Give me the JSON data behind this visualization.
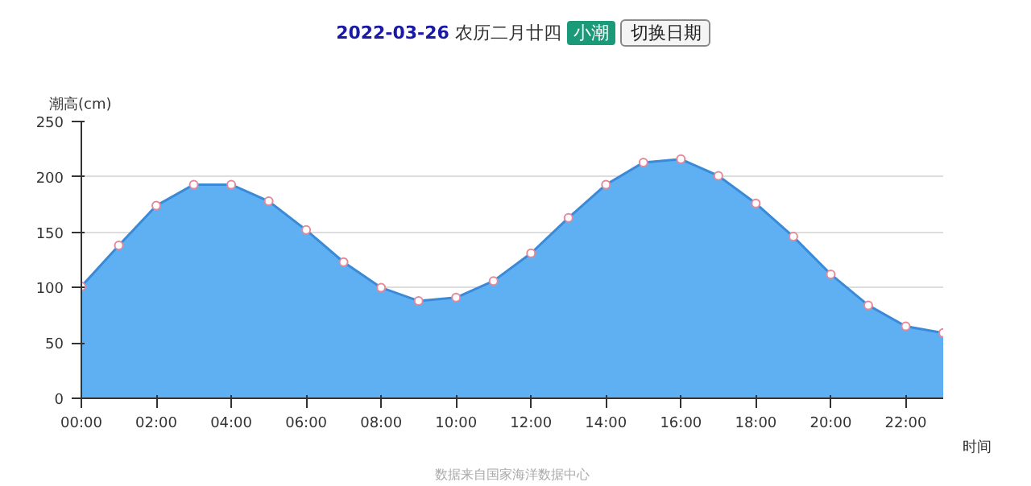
{
  "chart_data": {
    "type": "area",
    "title": "2022-03-26 农历二月廿四",
    "xlabel": "时间",
    "ylabel": "潮高(cm)",
    "annotations": [
      "小潮",
      "切换日期",
      "数据来自国家海洋数据中心"
    ],
    "x": [
      0,
      1,
      2,
      3,
      4,
      5,
      6,
      7,
      8,
      9,
      10,
      11,
      12,
      13,
      14,
      15,
      16,
      17,
      18,
      19,
      20,
      21,
      22,
      23
    ],
    "series": [
      {
        "color": "#5eb0f2",
        "values": [
          101,
          138,
          174,
          193,
          193,
          178,
          152,
          123,
          100,
          88,
          91,
          106,
          131,
          163,
          193,
          213,
          216,
          201,
          176,
          146,
          112,
          84,
          65,
          59
        ]
      }
    ],
    "xlim": [
      0,
      23
    ],
    "ylim": [
      0,
      250
    ],
    "xticks": [
      {
        "value": 0,
        "label": "00:00"
      },
      {
        "value": 2,
        "label": "02:00"
      },
      {
        "value": 4,
        "label": "04:00"
      },
      {
        "value": 6,
        "label": "06:00"
      },
      {
        "value": 8,
        "label": "08:00"
      },
      {
        "value": 10,
        "label": "10:00"
      },
      {
        "value": 12,
        "label": "12:00"
      },
      {
        "value": 14,
        "label": "14:00"
      },
      {
        "value": 16,
        "label": "16:00"
      },
      {
        "value": 18,
        "label": "18:00"
      },
      {
        "value": 20,
        "label": "20:00"
      },
      {
        "value": 22,
        "label": "22:00"
      }
    ],
    "yticks": [
      0,
      50,
      100,
      150,
      200,
      250
    ],
    "grid": "y",
    "marker": "circle"
  }
}
